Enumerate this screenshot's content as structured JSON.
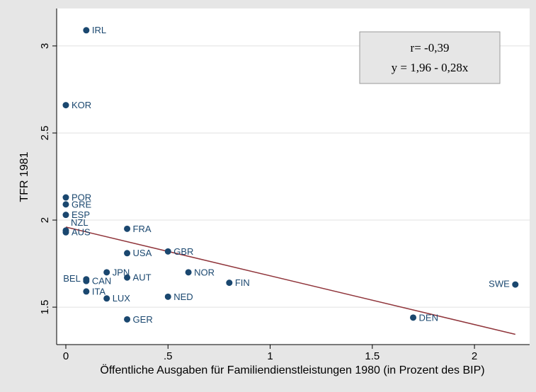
{
  "chart_data": {
    "type": "scatter",
    "x_label": "Öffentliche Ausgaben für Familiendienstleistungen 1980 (in Prozent des BIP)",
    "y_label": "TFR 1981",
    "xlim": [
      -0.045,
      2.27
    ],
    "ylim": [
      1.285,
      3.215
    ],
    "xticks": [
      0,
      {
        "value": 0.5,
        "label": ".5"
      },
      1,
      1.5,
      2
    ],
    "yticks": [
      1.5,
      2,
      2.5,
      3
    ],
    "grid": true,
    "color": "#1a476f",
    "points": {
      "labels": [
        "IRL",
        "KOR",
        "POR",
        "GRE",
        "ESP",
        "NZL",
        "AUS",
        "FRA",
        "USA",
        "GBR",
        "JPN",
        "AUT",
        "NOR",
        "BEL",
        "CAN",
        "FIN",
        "SWE",
        "ITA",
        "LUX",
        "NED",
        "GER",
        "DEN"
      ],
      "x": [
        0.1,
        0,
        0,
        0,
        0,
        0,
        0,
        0.3,
        0.3,
        0.5,
        0.2,
        0.3,
        0.6,
        0.1,
        0.1,
        0.8,
        2.2,
        0.1,
        0.2,
        0.5,
        0.3,
        1.7
      ],
      "y": [
        3.09,
        2.66,
        2.13,
        2.09,
        2.03,
        1.94,
        1.93,
        1.95,
        1.81,
        1.82,
        1.7,
        1.67,
        1.7,
        1.66,
        1.65,
        1.64,
        1.63,
        1.59,
        1.55,
        1.56,
        1.43,
        1.44
      ],
      "label_positions": [
        3,
        3,
        3,
        3,
        3,
        12,
        3,
        3,
        3,
        3,
        3,
        3,
        3,
        9,
        3,
        3,
        9,
        3,
        3,
        3,
        3,
        3
      ]
    },
    "fit": {
      "intercept": 1.96,
      "slope": -0.28,
      "x": [
        0,
        2.2
      ],
      "color": "#90353b"
    },
    "annotations": [
      "r= -0,39",
      "y = 1,96 - 0,28x"
    ]
  }
}
